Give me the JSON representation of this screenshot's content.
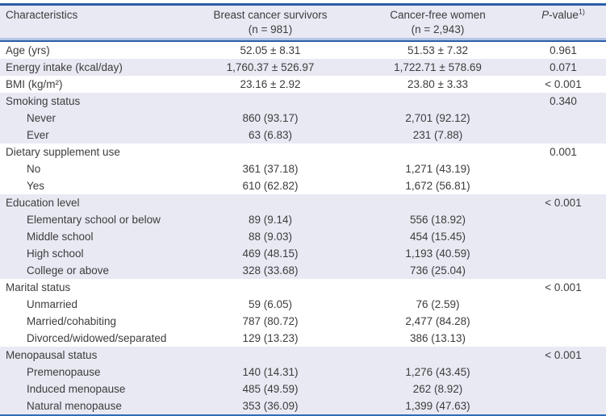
{
  "colors": {
    "stripe": "#e9e9f4",
    "border_dark": "#2a5ea9",
    "border_light": "#2f6db8",
    "text": "#3c3c3c"
  },
  "table": {
    "columns": [
      {
        "label": "Characteristics"
      },
      {
        "label": "Breast cancer survivors",
        "sub": "(n = 981)"
      },
      {
        "label": "Cancer-free women",
        "sub": "(n = 2,943)"
      },
      {
        "label_italic": "P",
        "label_rest": "-value",
        "sup": "1)"
      }
    ],
    "rows": [
      {
        "label": "Age (yrs)",
        "indent": false,
        "stripe": false,
        "bcs": "52.05 ± 8.31",
        "cfw": "51.53 ± 7.32",
        "p": "0.961"
      },
      {
        "label": "Energy intake (kcal/day)",
        "indent": false,
        "stripe": true,
        "bcs": "1,760.37 ± 526.97",
        "cfw": "1,722.71 ± 578.69",
        "p": "0.071"
      },
      {
        "label": "BMI (kg/m²)",
        "indent": false,
        "stripe": false,
        "bcs": "23.16 ± 2.92",
        "cfw": "23.80 ± 3.33",
        "p": "< 0.001"
      },
      {
        "label": "Smoking status",
        "indent": false,
        "stripe": true,
        "bcs": "",
        "cfw": "",
        "p": "0.340"
      },
      {
        "label": "Never",
        "indent": true,
        "stripe": true,
        "bcs": "860 (93.17)",
        "cfw": "2,701 (92.12)",
        "p": ""
      },
      {
        "label": "Ever",
        "indent": true,
        "stripe": true,
        "bcs": "63 (6.83)",
        "cfw": "231 (7.88)",
        "p": ""
      },
      {
        "label": "Dietary supplement use",
        "indent": false,
        "stripe": false,
        "bcs": "",
        "cfw": "",
        "p": "0.001"
      },
      {
        "label": "No",
        "indent": true,
        "stripe": false,
        "bcs": "361 (37.18)",
        "cfw": "1,271 (43.19)",
        "p": ""
      },
      {
        "label": "Yes",
        "indent": true,
        "stripe": false,
        "bcs": "610 (62.82)",
        "cfw": "1,672 (56.81)",
        "p": ""
      },
      {
        "label": "Education level",
        "indent": false,
        "stripe": true,
        "bcs": "",
        "cfw": "",
        "p": "< 0.001"
      },
      {
        "label": "Elementary school or below",
        "indent": true,
        "stripe": true,
        "bcs": "89 (9.14)",
        "cfw": "556 (18.92)",
        "p": ""
      },
      {
        "label": "Middle school",
        "indent": true,
        "stripe": true,
        "bcs": "88 (9.03)",
        "cfw": "454 (15.45)",
        "p": ""
      },
      {
        "label": "High school",
        "indent": true,
        "stripe": true,
        "bcs": "469 (48.15)",
        "cfw": "1,193 (40.59)",
        "p": ""
      },
      {
        "label": "College or above",
        "indent": true,
        "stripe": true,
        "bcs": "328 (33.68)",
        "cfw": "736 (25.04)",
        "p": ""
      },
      {
        "label": "Marital status",
        "indent": false,
        "stripe": false,
        "bcs": "",
        "cfw": "",
        "p": "< 0.001"
      },
      {
        "label": "Unmarried",
        "indent": true,
        "stripe": false,
        "bcs": "59 (6.05)",
        "cfw": "76 (2.59)",
        "p": ""
      },
      {
        "label": "Married/cohabiting",
        "indent": true,
        "stripe": false,
        "bcs": "787 (80.72)",
        "cfw": "2,477 (84.28)",
        "p": ""
      },
      {
        "label": "Divorced/widowed/separated",
        "indent": true,
        "stripe": false,
        "bcs": "129 (13.23)",
        "cfw": "386 (13.13)",
        "p": ""
      },
      {
        "label": "Menopausal status",
        "indent": false,
        "stripe": true,
        "bcs": "",
        "cfw": "",
        "p": "< 0.001"
      },
      {
        "label": "Premenopause",
        "indent": true,
        "stripe": true,
        "bcs": "140 (14.31)",
        "cfw": "1,276 (43.45)",
        "p": ""
      },
      {
        "label": "Induced menopause",
        "indent": true,
        "stripe": true,
        "bcs": "485 (49.59)",
        "cfw": "262 (8.92)",
        "p": ""
      },
      {
        "label": "Natural menopause",
        "indent": true,
        "stripe": true,
        "bcs": "353 (36.09)",
        "cfw": "1,399 (47.63)",
        "p": ""
      }
    ]
  }
}
